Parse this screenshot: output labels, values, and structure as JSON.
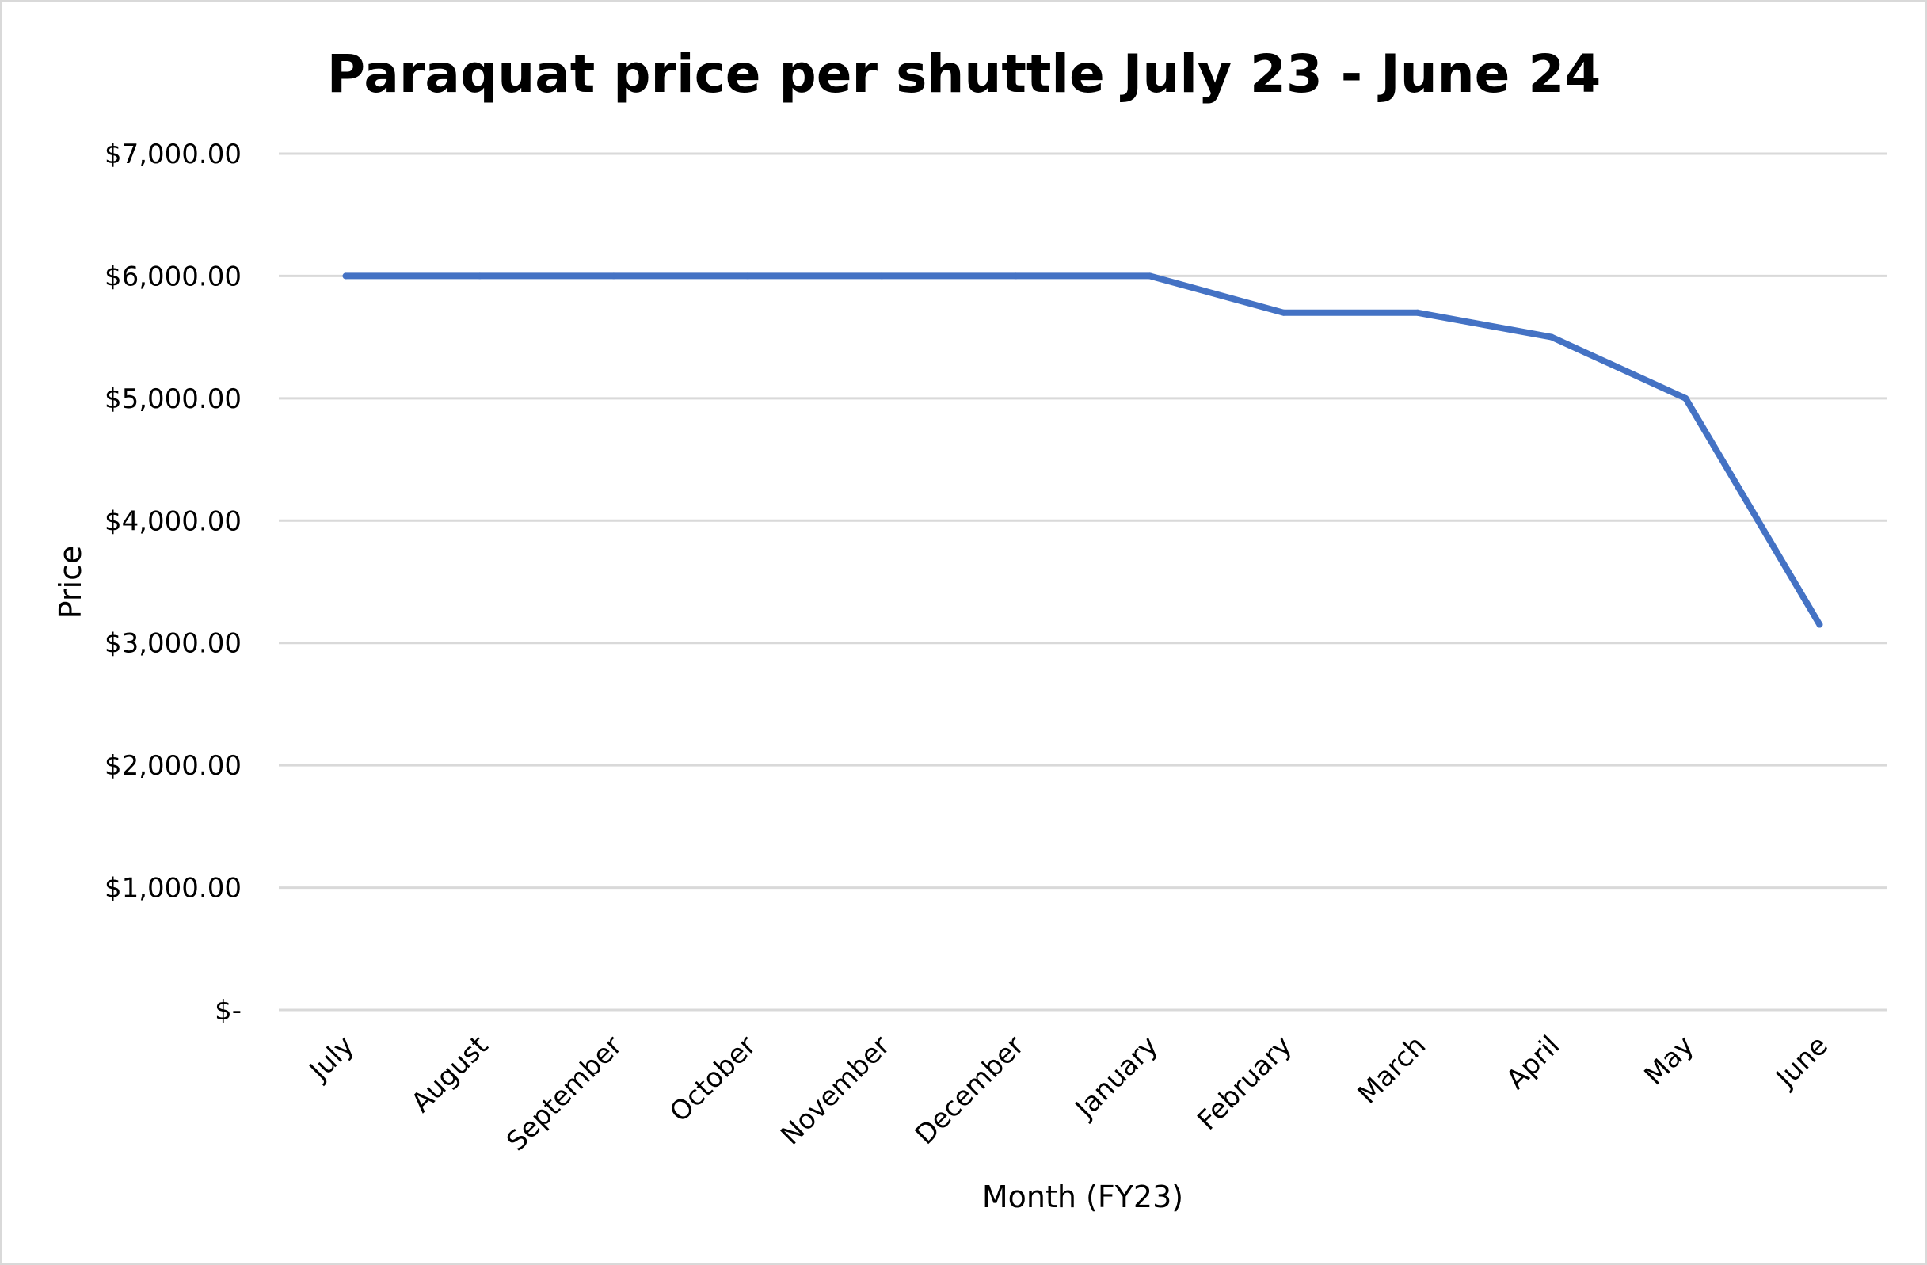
{
  "chart_data": {
    "type": "line",
    "title": "Paraquat price per shuttle July 23 - June 24",
    "xlabel": "Month (FY23)",
    "ylabel": "Price",
    "categories": [
      "July",
      "August",
      "September",
      "October",
      "November",
      "December",
      "January",
      "February",
      "March",
      "April",
      "May",
      "June"
    ],
    "series": [
      {
        "values": [
          6000,
          6000,
          6000,
          6000,
          6000,
          6000,
          6000,
          5700,
          5700,
          5500,
          5000,
          3150
        ],
        "color": "#4472c4"
      }
    ],
    "ylim": [
      0,
      7000
    ],
    "yticks": [
      0,
      1000,
      2000,
      3000,
      4000,
      5000,
      6000,
      7000
    ],
    "ytick_labels": [
      "$-",
      "$1,000.00",
      "$2,000.00",
      "$3,000.00",
      "$4,000.00",
      "$5,000.00",
      "$6,000.00",
      "$7,000.00"
    ],
    "grid": true,
    "legend": "none"
  }
}
